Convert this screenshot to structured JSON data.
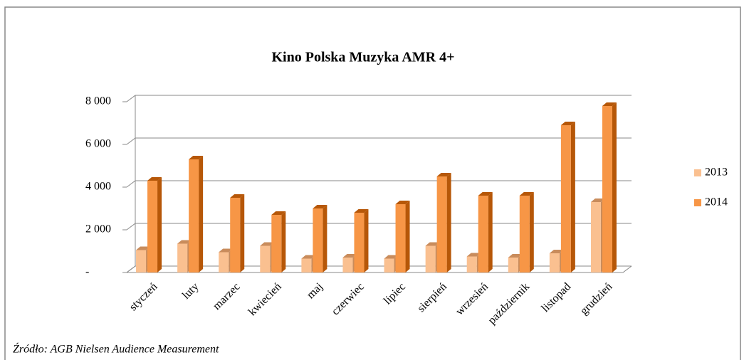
{
  "chart_data": {
    "type": "bar3d",
    "title": "Kino Polska Muzyka  AMR 4+",
    "categories": [
      "styczeń",
      "luty",
      "marzec",
      "kwiecień",
      "maj",
      "czerwiec",
      "lipiec",
      "sierpień",
      "wrzesień",
      "październik",
      "listopad",
      "grudzień"
    ],
    "series": [
      {
        "name": "2013",
        "color": "#fac090",
        "side": "#c98c5c",
        "values": [
          1050,
          1350,
          950,
          1250,
          650,
          700,
          650,
          1250,
          750,
          700,
          900,
          3300
        ]
      },
      {
        "name": "2014",
        "color": "#f79646",
        "side": "#b65708",
        "values": [
          4300,
          5300,
          3500,
          2700,
          3000,
          2800,
          3200,
          4500,
          3600,
          3600,
          6900,
          7800
        ]
      }
    ],
    "ylim": [
      0,
      8000
    ],
    "yticks": [
      {
        "value": 0,
        "label": "-"
      },
      {
        "value": 2000,
        "label": "2 000"
      },
      {
        "value": 4000,
        "label": "4 000"
      },
      {
        "value": 6000,
        "label": "6 000"
      },
      {
        "value": 8000,
        "label": "8 000"
      }
    ],
    "grid": true,
    "legend": "right",
    "source": "Źródło: AGB Nielsen Audience Measurement"
  }
}
